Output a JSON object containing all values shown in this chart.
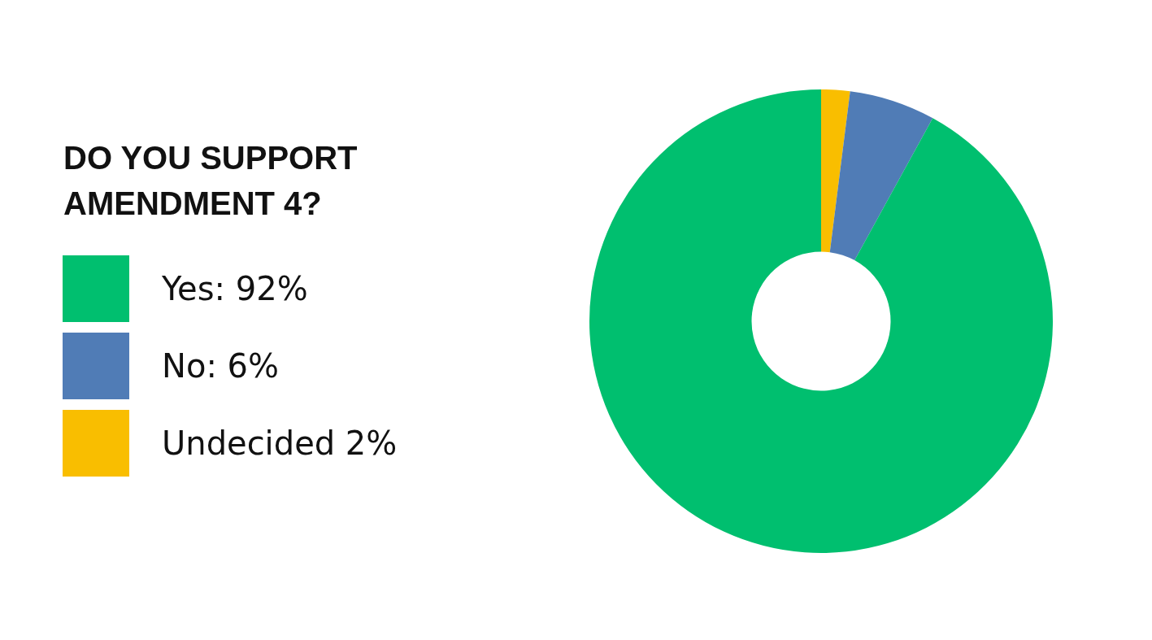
{
  "chart_data": {
    "type": "donut",
    "title": "DO YOU SUPPORT AMENDMENT 4?",
    "categories": [
      "Yes: 92%",
      "No: 6%",
      "Undecided 2%"
    ],
    "values": [
      92,
      6,
      2
    ],
    "colors": [
      "#00bf6f",
      "#507cb6",
      "#f9be00"
    ],
    "legend": "left"
  }
}
